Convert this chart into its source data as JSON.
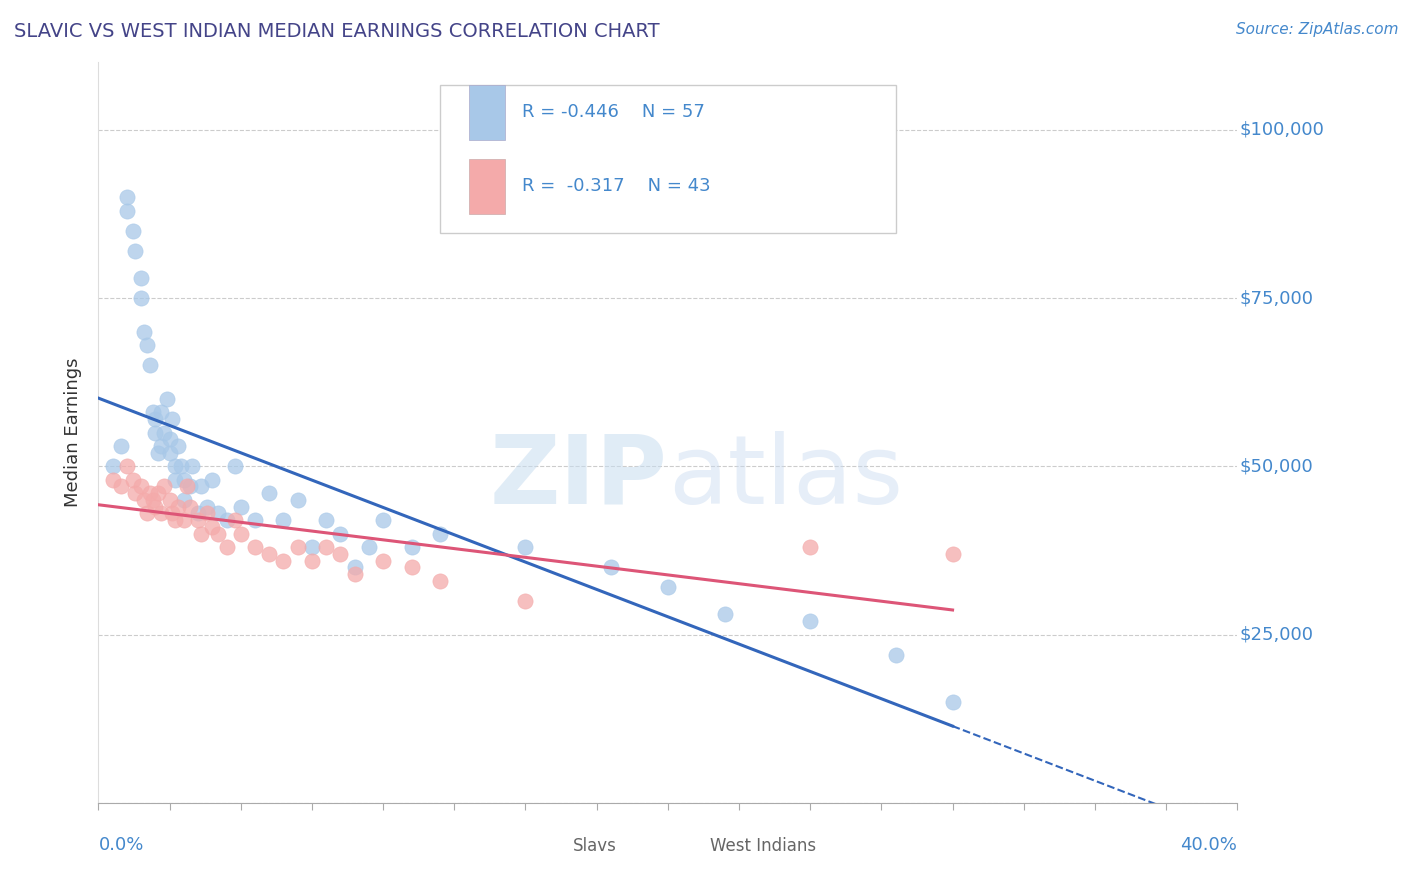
{
  "title": "SLAVIC VS WEST INDIAN MEDIAN EARNINGS CORRELATION CHART",
  "source": "Source: ZipAtlas.com",
  "ylabel": "Median Earnings",
  "xlim": [
    0.0,
    0.4
  ],
  "ylim": [
    0,
    110000
  ],
  "yticks": [
    0,
    25000,
    50000,
    75000,
    100000
  ],
  "ytick_labels": [
    "",
    "$25,000",
    "$50,000",
    "$75,000",
    "$100,000"
  ],
  "watermark": "ZIPatlas",
  "slavs_color": "#a8c8e8",
  "west_indians_color": "#f4aaaa",
  "slavs_line_color": "#3366bb",
  "west_indians_line_color": "#dd5577",
  "background_color": "#ffffff",
  "grid_color": "#cccccc",
  "title_color": "#444488",
  "right_tick_color": "#4488cc",
  "legend_text_color": "#4488cc",
  "axis_label_color": "#333333",
  "bottom_label_color": "#666666",
  "slavs_x": [
    0.005,
    0.008,
    0.01,
    0.01,
    0.012,
    0.013,
    0.015,
    0.015,
    0.016,
    0.017,
    0.018,
    0.019,
    0.02,
    0.02,
    0.021,
    0.022,
    0.022,
    0.023,
    0.024,
    0.025,
    0.025,
    0.026,
    0.027,
    0.027,
    0.028,
    0.029,
    0.03,
    0.03,
    0.032,
    0.033,
    0.035,
    0.036,
    0.038,
    0.04,
    0.042,
    0.045,
    0.048,
    0.05,
    0.055,
    0.06,
    0.065,
    0.07,
    0.075,
    0.08,
    0.085,
    0.09,
    0.095,
    0.1,
    0.11,
    0.12,
    0.15,
    0.18,
    0.2,
    0.22,
    0.25,
    0.28,
    0.3
  ],
  "slavs_y": [
    50000,
    53000,
    88000,
    90000,
    85000,
    82000,
    78000,
    75000,
    70000,
    68000,
    65000,
    58000,
    57000,
    55000,
    52000,
    58000,
    53000,
    55000,
    60000,
    52000,
    54000,
    57000,
    50000,
    48000,
    53000,
    50000,
    48000,
    45000,
    47000,
    50000,
    43000,
    47000,
    44000,
    48000,
    43000,
    42000,
    50000,
    44000,
    42000,
    46000,
    42000,
    45000,
    38000,
    42000,
    40000,
    35000,
    38000,
    42000,
    38000,
    40000,
    38000,
    35000,
    32000,
    28000,
    27000,
    22000,
    15000
  ],
  "west_indians_x": [
    0.005,
    0.008,
    0.01,
    0.012,
    0.013,
    0.015,
    0.016,
    0.017,
    0.018,
    0.019,
    0.02,
    0.021,
    0.022,
    0.023,
    0.025,
    0.026,
    0.027,
    0.028,
    0.03,
    0.031,
    0.032,
    0.035,
    0.036,
    0.038,
    0.04,
    0.042,
    0.045,
    0.048,
    0.05,
    0.055,
    0.06,
    0.065,
    0.07,
    0.075,
    0.08,
    0.085,
    0.09,
    0.1,
    0.11,
    0.12,
    0.15,
    0.25,
    0.3
  ],
  "west_indians_y": [
    48000,
    47000,
    50000,
    48000,
    46000,
    47000,
    45000,
    43000,
    46000,
    45000,
    44000,
    46000,
    43000,
    47000,
    45000,
    43000,
    42000,
    44000,
    42000,
    47000,
    44000,
    42000,
    40000,
    43000,
    41000,
    40000,
    38000,
    42000,
    40000,
    38000,
    37000,
    36000,
    38000,
    36000,
    38000,
    37000,
    34000,
    36000,
    35000,
    33000,
    30000,
    38000,
    37000
  ]
}
